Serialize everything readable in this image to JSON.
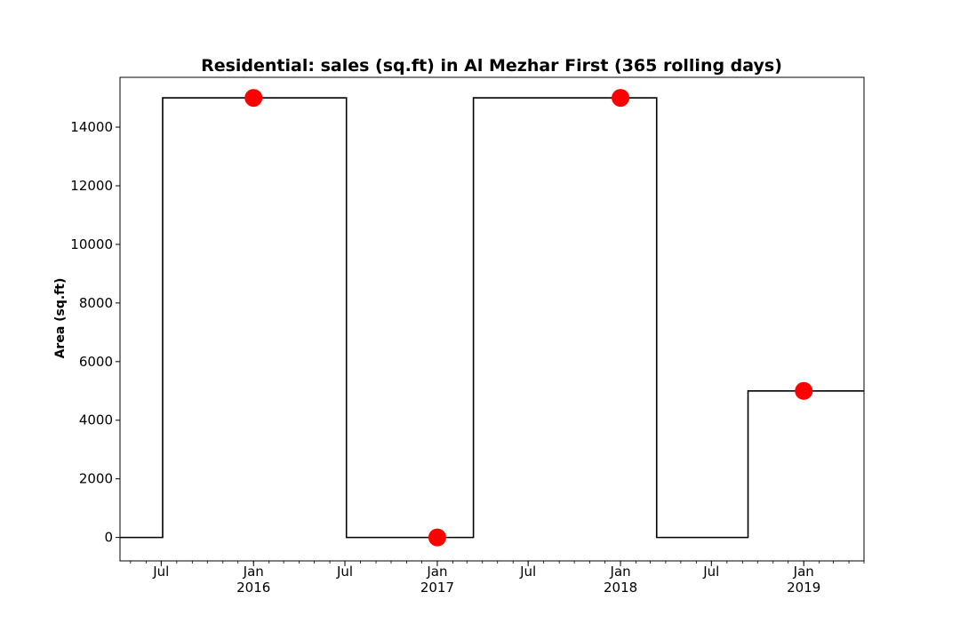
{
  "chart_data": {
    "type": "line",
    "subtype": "step",
    "title": "Residential: sales (sq.ft) in Al Mezhar First (365 rolling days)",
    "xlabel": "",
    "ylabel": "Area (sq.ft)",
    "xlim": [
      "2015-04-10",
      "2019-05-01"
    ],
    "ylim": [
      -800,
      15700
    ],
    "grid": false,
    "legend": "none",
    "x_tick_labels": [
      {
        "date": "2015-07-01",
        "label": "Jul",
        "sublabel": ""
      },
      {
        "date": "2016-01-01",
        "label": "Jan",
        "sublabel": "2016"
      },
      {
        "date": "2016-07-01",
        "label": "Jul",
        "sublabel": ""
      },
      {
        "date": "2017-01-01",
        "label": "Jan",
        "sublabel": "2017"
      },
      {
        "date": "2017-07-01",
        "label": "Jul",
        "sublabel": ""
      },
      {
        "date": "2018-01-01",
        "label": "Jan",
        "sublabel": "2018"
      },
      {
        "date": "2018-07-01",
        "label": "Jul",
        "sublabel": ""
      },
      {
        "date": "2019-01-01",
        "label": "Jan",
        "sublabel": "2019"
      }
    ],
    "y_ticks": [
      0,
      2000,
      4000,
      6000,
      8000,
      10000,
      12000,
      14000
    ],
    "series": [
      {
        "kind": "step",
        "color": "#000000",
        "points": [
          {
            "x": "2015-04-10",
            "y": 0
          },
          {
            "x": "2015-07-04",
            "y": 15000
          },
          {
            "x": "2016-07-04",
            "y": 0
          },
          {
            "x": "2017-03-14",
            "y": 15000
          },
          {
            "x": "2018-03-14",
            "y": 0
          },
          {
            "x": "2018-09-12",
            "y": 5000
          },
          {
            "x": "2019-05-01",
            "y": 5000
          }
        ]
      },
      {
        "kind": "markers",
        "color": "#ff0000",
        "points": [
          {
            "x": "2016-01-01",
            "y": 15000
          },
          {
            "x": "2017-01-01",
            "y": 0
          },
          {
            "x": "2018-01-01",
            "y": 15000
          },
          {
            "x": "2019-01-01",
            "y": 5000
          }
        ]
      }
    ]
  }
}
